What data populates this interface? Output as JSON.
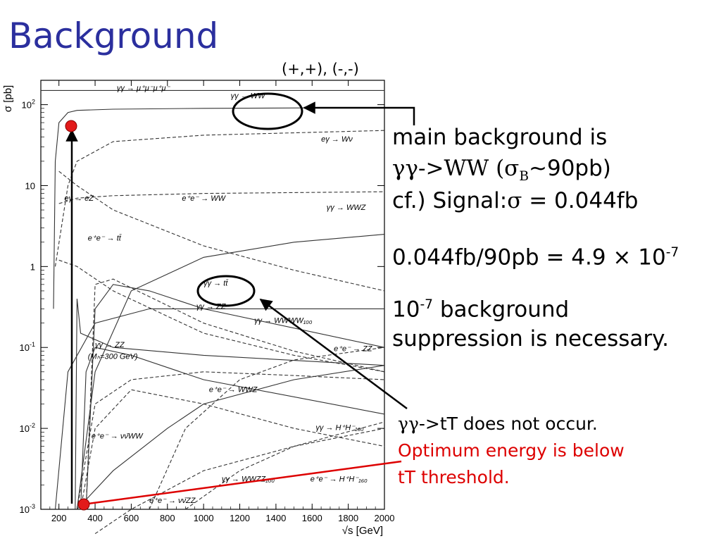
{
  "slide": {
    "title": "Background",
    "polarization_label": "(+,+), (-,-)"
  },
  "notes": {
    "line1": "main background is",
    "line2_prefix": "γγ->WW (σ",
    "line2_sub": "B",
    "line2_suffix": "∼90pb)",
    "line3_prefix": "cf.) Signal:",
    "line3_sigma": "σ",
    "line3_suffix": " = 0.044fb",
    "ratio_prefix": "0.044fb/90pb = 4.9 × 10",
    "ratio_exp": "-7",
    "supp_base": "10",
    "supp_exp": "-7",
    "supp_line1_suffix": " background",
    "supp_line2": "suppression is necessary.",
    "tt_gg": "γγ",
    "tt_line1": "->tT does not occur.",
    "tt_line2": "Optimum energy is below",
    "tt_line3": "tT threshold.",
    "red_color": "#dd0000"
  },
  "chart_data": {
    "type": "line",
    "title": "",
    "ylabel": "σ [pb]",
    "xlabel": "√s [GeV]",
    "xlim": [
      100,
      2000
    ],
    "ylim": [
      0.001,
      200
    ],
    "yscale": "log",
    "x_ticks": [
      "200",
      "400",
      "600",
      "800",
      "1000",
      "1200",
      "1400",
      "1600",
      "1800",
      "2000"
    ],
    "y_ticks": [
      "10^2",
      "10",
      "1",
      "10^-1",
      "10^-2",
      "10^-3"
    ],
    "grid": false,
    "series": [
      {
        "name": "γγ → μ⁺μ⁻μ⁺μ⁻",
        "style": "solid",
        "x": [
          100,
          2000
        ],
        "y": [
          150,
          150
        ]
      },
      {
        "name": "γγ → WW",
        "style": "solid",
        "x": [
          170,
          180,
          200,
          250,
          300,
          500,
          1000,
          2000
        ],
        "y": [
          0.3,
          20,
          60,
          80,
          85,
          88,
          90,
          92
        ]
      },
      {
        "name": "eγ → Wν",
        "style": "dashed",
        "x": [
          180,
          250,
          300,
          500,
          1000,
          2000
        ],
        "y": [
          1,
          10,
          20,
          35,
          42,
          48
        ]
      },
      {
        "name": "eγ → eZ",
        "style": "dashed",
        "x": [
          200,
          300,
          500,
          1000,
          1500,
          2000
        ],
        "y": [
          6,
          7,
          7.5,
          8,
          8.2,
          8.4
        ]
      },
      {
        "name": "e⁺e⁻ → WW",
        "style": "dashed",
        "x": [
          200,
          300,
          500,
          1000,
          1500,
          2000
        ],
        "y": [
          15,
          10,
          5,
          1.8,
          0.9,
          0.5
        ]
      },
      {
        "name": "γγ → WWZ",
        "style": "solid",
        "x": [
          300,
          400,
          600,
          1000,
          1500,
          2000
        ],
        "y": [
          0.001,
          0.05,
          0.5,
          1.3,
          2.0,
          2.5
        ]
      },
      {
        "name": "e⁺e⁻ → tt̄",
        "style": "dashed",
        "x": [
          350,
          400,
          500,
          1000,
          1500,
          2000
        ],
        "y": [
          0.001,
          0.6,
          0.7,
          0.2,
          0.09,
          0.05
        ]
      },
      {
        "name": "γγ → tt̄",
        "style": "solid",
        "x": [
          350,
          400,
          500,
          700,
          1000,
          2000
        ],
        "y": [
          0.001,
          0.3,
          0.6,
          0.5,
          0.3,
          0.1
        ]
      },
      {
        "name": "γγ → ZZ",
        "style": "solid",
        "x": [
          180,
          250,
          400,
          700,
          1000,
          2000
        ],
        "y": [
          0.001,
          0.05,
          0.2,
          0.3,
          0.3,
          0.3
        ]
      },
      {
        "name": "γγ → WWWW₁₀₀",
        "style": "dashed",
        "x": [
          700,
          900,
          1200,
          1500,
          2000
        ],
        "y": [
          0.001,
          0.01,
          0.04,
          0.07,
          0.1
        ]
      },
      {
        "name": "e⁺e⁻ → ZZ",
        "style": "dashed",
        "x": [
          200,
          300,
          500,
          1000,
          1500,
          2000
        ],
        "y": [
          1.2,
          1.0,
          0.5,
          0.15,
          0.08,
          0.05
        ]
      },
      {
        "name": "γγ → ZZ (Mₕ=300 GeV)",
        "style": "solid",
        "x": [
          290,
          300,
          320,
          500,
          1000,
          2000
        ],
        "y": [
          0.001,
          0.4,
          0.15,
          0.1,
          0.08,
          0.06
        ]
      },
      {
        "name": "e⁺e⁻ → WWZ",
        "style": "dashed",
        "x": [
          300,
          400,
          600,
          1000,
          1500,
          2000
        ],
        "y": [
          0.001,
          0.02,
          0.04,
          0.05,
          0.045,
          0.04
        ]
      },
      {
        "name": "e⁺e⁻ → νν̄WW",
        "style": "solid",
        "x": [
          300,
          500,
          800,
          1000,
          1500,
          2000
        ],
        "y": [
          0.001,
          0.003,
          0.01,
          0.02,
          0.04,
          0.06
        ]
      },
      {
        "name": "γγ → H⁺H⁻₁₆₀",
        "style": "solid",
        "x": [
          320,
          350,
          400,
          600,
          1000,
          2000
        ],
        "y": [
          0.001,
          0.05,
          0.1,
          0.08,
          0.04,
          0.015
        ]
      },
      {
        "name": "γγ → WWZZ₁₀₀",
        "style": "dashed",
        "x": [
          900,
          1200,
          1500,
          2000
        ],
        "y": [
          0.001,
          0.003,
          0.006,
          0.012
        ]
      },
      {
        "name": "e⁺e⁻ → H⁺H⁻₁₆₀",
        "style": "dashed",
        "x": [
          320,
          400,
          600,
          1000,
          1500,
          2000
        ],
        "y": [
          0.001,
          0.01,
          0.03,
          0.02,
          0.01,
          0.006
        ]
      },
      {
        "name": "e⁺e⁻ → νν̄ZZ",
        "style": "dashed",
        "x": [
          400,
          600,
          1000,
          1500,
          2000
        ],
        "y": [
          0.0003,
          0.001,
          0.003,
          0.006,
          0.01
        ]
      }
    ],
    "labels": [
      {
        "text": "γγ → μ⁺μ⁻μ⁺μ⁻",
        "x": 520,
        "y": 150
      },
      {
        "text": "γγ → WW",
        "x": 1150,
        "y": 120
      },
      {
        "text": "eγ → Wν",
        "x": 1650,
        "y": 35
      },
      {
        "text": "eγ → eZ",
        "x": 230,
        "y": 6.5
      },
      {
        "text": "e⁺e⁻ → WW",
        "x": 880,
        "y": 6.5
      },
      {
        "text": "γγ → WWZ",
        "x": 1680,
        "y": 5
      },
      {
        "text": "e⁺e⁻ → tt̄",
        "x": 360,
        "y": 2.1
      },
      {
        "text": "γγ → tt̄",
        "x": 1000,
        "y": 0.58
      },
      {
        "text": "γγ → ZZ",
        "x": 960,
        "y": 0.3
      },
      {
        "text": "γγ → WWWW₁₀₀",
        "x": 1280,
        "y": 0.2
      },
      {
        "text": "e⁺e⁻ → ZZ",
        "x": 1720,
        "y": 0.09
      },
      {
        "text": "γγ → ZZ",
        "x": 400,
        "y": 0.1
      },
      {
        "text": "(Mₕ=300 GeV)",
        "x": 360,
        "y": 0.072
      },
      {
        "text": "e⁺e⁻ → WWZ",
        "x": 1030,
        "y": 0.028
      },
      {
        "text": "e⁺e⁻ → νν̄WW",
        "x": 380,
        "y": 0.0075
      },
      {
        "text": "γγ → H⁺H⁻₁₆₀",
        "x": 1620,
        "y": 0.0095
      },
      {
        "text": "γγ → WWZZ₁₀₀",
        "x": 1100,
        "y": 0.0022
      },
      {
        "text": "e⁺e⁻ → H⁺H⁻₁₆₀",
        "x": 1590,
        "y": 0.0022
      },
      {
        "text": "e⁺e⁻ → νν̄ZZ",
        "x": 700,
        "y": 0.0012
      }
    ]
  }
}
